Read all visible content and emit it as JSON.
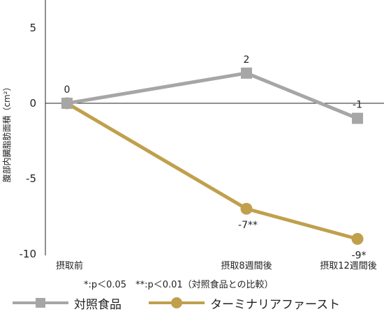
{
  "chart_data": {
    "type": "line",
    "title": "",
    "ylabel": "腹部内臓脂肪面積（cm²）",
    "xlabel": "",
    "categories": [
      "摂取前",
      "摂取8週間後",
      "摂取12週間後"
    ],
    "ylim": [
      -10,
      5
    ],
    "yticks": [
      5,
      0,
      -5,
      -10
    ],
    "series": [
      {
        "name": "対照食品",
        "values": [
          0,
          2,
          -1
        ],
        "labels": [
          "0",
          "2",
          "-1"
        ],
        "marker": "square",
        "color": "#a6a6a6"
      },
      {
        "name": "ターミナリアファースト",
        "values": [
          0,
          -7,
          -9
        ],
        "labels": [
          "",
          "-7**",
          "-9*"
        ],
        "marker": "circle",
        "color": "#c0a04c"
      }
    ],
    "note": "*:p＜0.05　**:p＜0.01（対照食品との比較）"
  }
}
